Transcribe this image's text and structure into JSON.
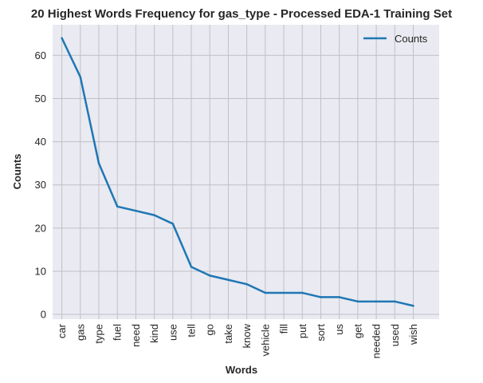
{
  "chart_data": {
    "type": "line",
    "title": "20 Highest Words Frequency for gas_type - Processed EDA-1 Training Set",
    "xlabel": "Words",
    "ylabel": "Counts",
    "categories": [
      "car",
      "gas",
      "type",
      "fuel",
      "need",
      "kind",
      "use",
      "tell",
      "go",
      "take",
      "know",
      "vehicle",
      "fill",
      "put",
      "sort",
      "us",
      "get",
      "needed",
      "used",
      "wish"
    ],
    "series": [
      {
        "name": "Counts",
        "values": [
          64,
          55,
          35,
          25,
          24,
          23,
          21,
          11,
          9,
          8,
          7,
          5,
          5,
          5,
          4,
          4,
          3,
          3,
          3,
          2
        ]
      }
    ],
    "ylim": [
      -1.1,
      67.1
    ],
    "yticks": [
      0,
      10,
      20,
      30,
      40,
      50,
      60
    ],
    "grid": true,
    "legend_position": "top-right",
    "colors": {
      "line": "#1f77b4",
      "plot_background": "#eaeaf2",
      "grid": "#c0c0c6",
      "text": "#262626"
    }
  }
}
